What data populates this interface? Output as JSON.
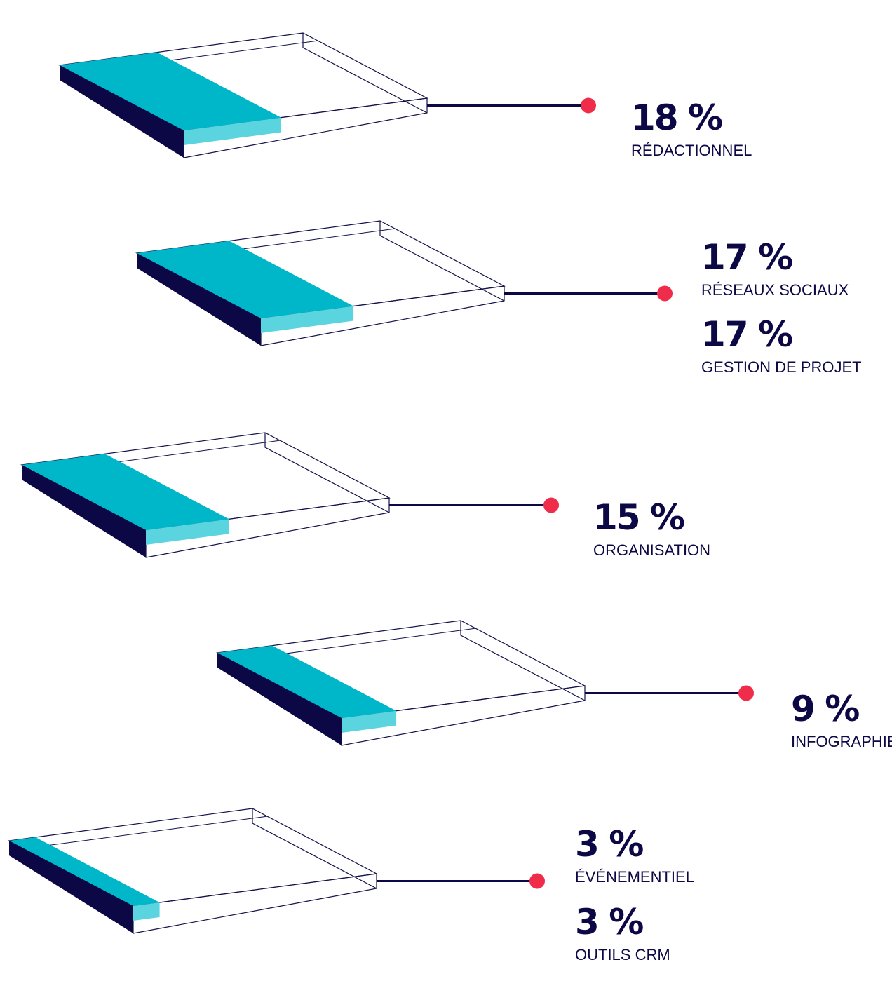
{
  "colors": {
    "navy": "#0c0745",
    "teal_top": "#00b7c9",
    "teal_front": "#5ad4de",
    "dot": "#ef2d4b",
    "outline": "#14124a",
    "text": "#0c0745"
  },
  "chart_data": {
    "type": "bar",
    "orientation": "3d-slab",
    "items": [
      {
        "entries": [
          {
            "value": 18,
            "value_label": "18 %",
            "label": "RÉDACTIONNEL"
          }
        ]
      },
      {
        "entries": [
          {
            "value": 17,
            "value_label": "17 %",
            "label": "RÉSEAUX SOCIAUX"
          },
          {
            "value": 17,
            "value_label": "17 %",
            "label": "GESTION DE PROJET"
          }
        ]
      },
      {
        "entries": [
          {
            "value": 15,
            "value_label": "15 %",
            "label": "ORGANISATION"
          }
        ]
      },
      {
        "entries": [
          {
            "value": 9,
            "value_label": "9 %",
            "label": "INFOGRAPHIE"
          }
        ]
      },
      {
        "entries": [
          {
            "value": 3,
            "value_label": "3 %",
            "label": "ÉVÉNEMENTIEL"
          },
          {
            "value": 3,
            "value_label": "3 %",
            "label": "OUTILS CRM"
          }
        ]
      }
    ]
  }
}
